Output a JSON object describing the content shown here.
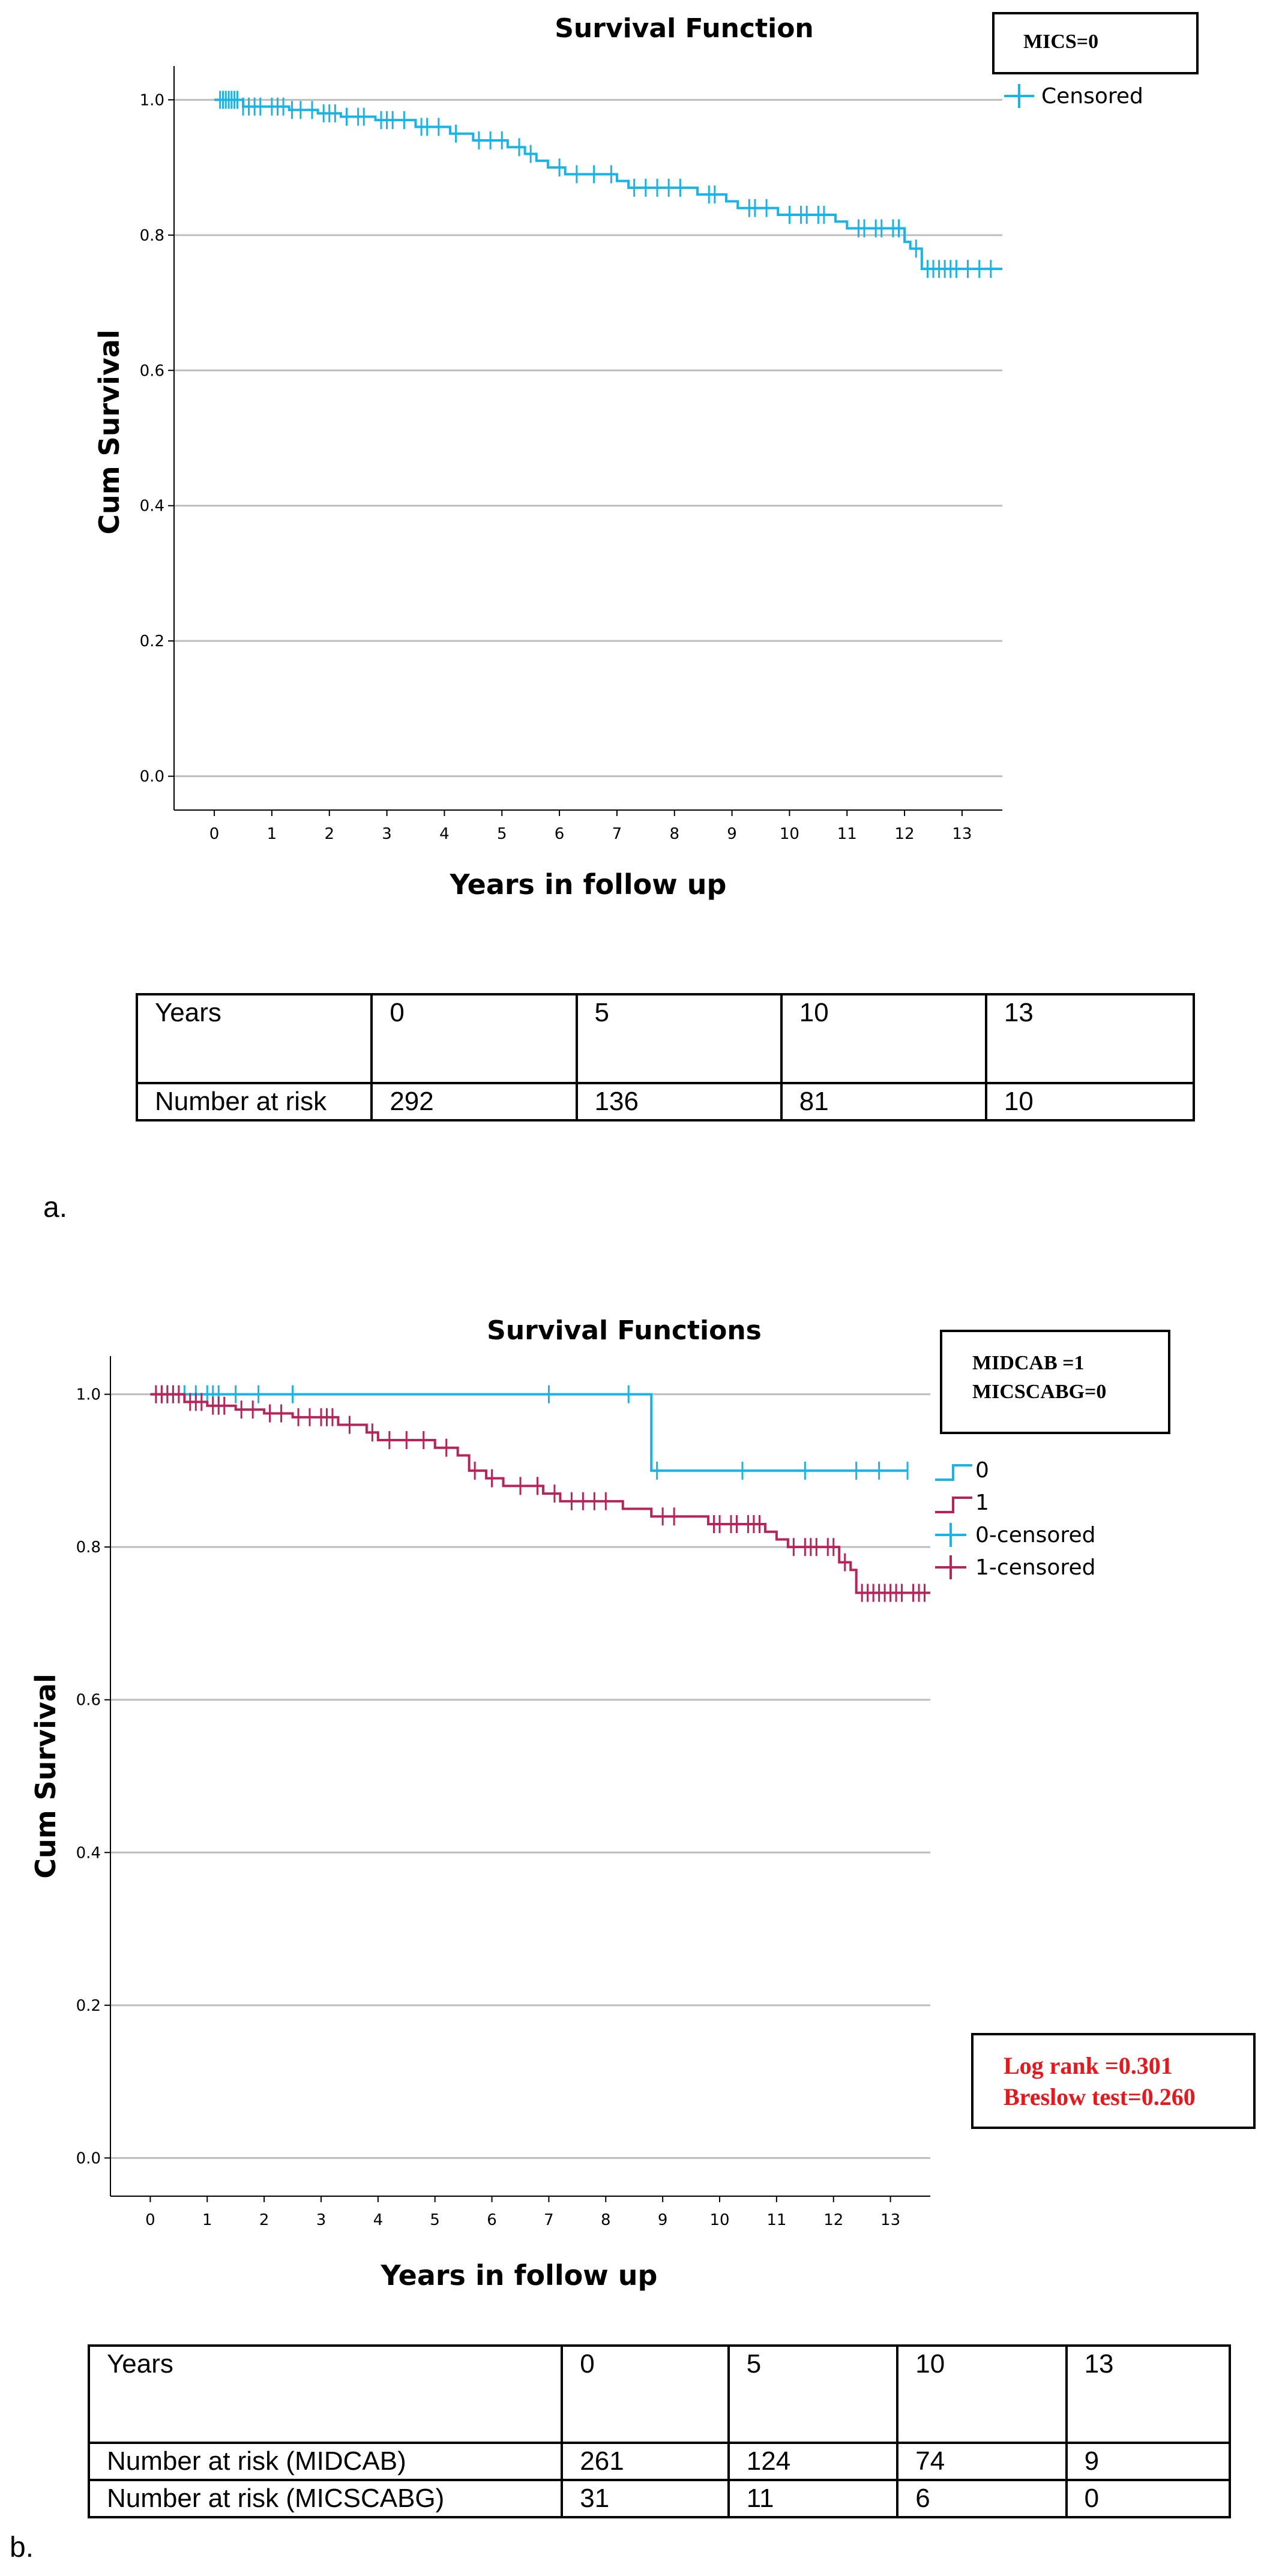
{
  "panel_a": {
    "label": "a.",
    "box_text": "MICS=0",
    "risk_table": {
      "header_label": "Years",
      "years": [
        "0",
        "5",
        "10",
        "13"
      ],
      "rows": [
        {
          "label": "Number at risk",
          "values": [
            "292",
            "136",
            "81",
            "10"
          ]
        }
      ]
    }
  },
  "panel_b": {
    "label": "b.",
    "box_text": [
      "MIDCAB =1",
      "MICSCABG=0"
    ],
    "stats": [
      "Log rank =0.301",
      "Breslow test=0.260"
    ],
    "risk_table": {
      "header_label": "Years",
      "years": [
        "0",
        "5",
        "10",
        "13"
      ],
      "rows": [
        {
          "label": "Number at risk (MIDCAB)",
          "values": [
            "261",
            "124",
            "74",
            "9"
          ]
        },
        {
          "label": "Number at risk (MICSCABG)",
          "values": [
            "31",
            "11",
            "6",
            "0"
          ]
        }
      ]
    }
  },
  "colors": {
    "cyan": "#18b4e8",
    "crimson": "#b8245a",
    "grid": "#bdbdbd",
    "stat_red": "#e8171b"
  },
  "chart_data": [
    {
      "type": "line",
      "title": "Survival Function",
      "xlabel": "Years in follow up",
      "ylabel": "Cum Survival",
      "xlim": [
        -0.7,
        13.7
      ],
      "ylim": [
        -0.05,
        1.05
      ],
      "xticks": [
        "0",
        "1",
        "2",
        "3",
        "4",
        "5",
        "6",
        "7",
        "8",
        "9",
        "10",
        "11",
        "12",
        "13"
      ],
      "yticks": [
        "0.0",
        "0.2",
        "0.4",
        "0.6",
        "0.8",
        "1.0"
      ],
      "legend": [
        "Censored"
      ],
      "series": [
        {
          "name": "Survival",
          "color": "#18b4e8",
          "steps": [
            [
              0,
              1.0
            ],
            [
              0.5,
              0.99
            ],
            [
              1.3,
              0.985
            ],
            [
              1.8,
              0.98
            ],
            [
              2.2,
              0.975
            ],
            [
              2.8,
              0.97
            ],
            [
              3.5,
              0.96
            ],
            [
              4.1,
              0.95
            ],
            [
              4.5,
              0.94
            ],
            [
              5.1,
              0.93
            ],
            [
              5.4,
              0.92
            ],
            [
              5.6,
              0.91
            ],
            [
              5.8,
              0.9
            ],
            [
              6.1,
              0.89
            ],
            [
              7.0,
              0.88
            ],
            [
              7.2,
              0.87
            ],
            [
              8.4,
              0.86
            ],
            [
              8.9,
              0.85
            ],
            [
              9.1,
              0.84
            ],
            [
              9.8,
              0.83
            ],
            [
              10.8,
              0.82
            ],
            [
              11.0,
              0.81
            ],
            [
              12.0,
              0.79
            ],
            [
              12.1,
              0.78
            ],
            [
              12.3,
              0.75
            ],
            [
              13.7,
              0.75
            ]
          ],
          "censored_x": [
            0.1,
            0.15,
            0.2,
            0.25,
            0.3,
            0.35,
            0.4,
            0.5,
            0.6,
            0.7,
            0.8,
            1.0,
            1.1,
            1.2,
            1.35,
            1.5,
            1.7,
            1.9,
            2.0,
            2.1,
            2.3,
            2.5,
            2.6,
            2.9,
            3.0,
            3.1,
            3.3,
            3.6,
            3.7,
            3.9,
            4.2,
            4.6,
            4.8,
            5.0,
            5.3,
            5.5,
            6.0,
            6.3,
            6.6,
            6.9,
            7.3,
            7.5,
            7.7,
            7.9,
            8.1,
            8.6,
            8.7,
            9.3,
            9.4,
            9.6,
            10.0,
            10.2,
            10.3,
            10.5,
            10.6,
            11.2,
            11.3,
            11.5,
            11.6,
            11.8,
            11.9,
            12.2,
            12.4,
            12.5,
            12.6,
            12.7,
            12.8,
            12.9,
            13.1,
            13.3,
            13.5
          ]
        }
      ]
    },
    {
      "type": "line",
      "title": "Survival Functions",
      "xlabel": "Years in follow up",
      "ylabel": "Cum Survival",
      "xlim": [
        -0.7,
        13.7
      ],
      "ylim": [
        -0.05,
        1.05
      ],
      "xticks": [
        "0",
        "1",
        "2",
        "3",
        "4",
        "5",
        "6",
        "7",
        "8",
        "9",
        "10",
        "11",
        "12",
        "13"
      ],
      "yticks": [
        "0.0",
        "0.2",
        "0.4",
        "0.6",
        "0.8",
        "1.0"
      ],
      "legend": [
        "0",
        "1",
        "0-censored",
        "1-censored"
      ],
      "series": [
        {
          "name": "0",
          "color": "#18b4e8",
          "steps": [
            [
              0,
              1.0
            ],
            [
              8.8,
              0.9
            ],
            [
              13.3,
              0.9
            ]
          ],
          "censored_x": [
            0.1,
            0.2,
            0.3,
            0.4,
            0.6,
            0.8,
            1.0,
            1.1,
            1.2,
            1.5,
            1.9,
            2.5,
            7.0,
            8.4,
            8.9,
            10.4,
            11.5,
            12.4,
            12.8,
            13.3
          ]
        },
        {
          "name": "1",
          "color": "#b8245a",
          "steps": [
            [
              0,
              1.0
            ],
            [
              0.6,
              0.99
            ],
            [
              1.0,
              0.985
            ],
            [
              1.5,
              0.98
            ],
            [
              2.0,
              0.975
            ],
            [
              2.5,
              0.97
            ],
            [
              3.3,
              0.96
            ],
            [
              3.8,
              0.95
            ],
            [
              4.0,
              0.94
            ],
            [
              5.0,
              0.93
            ],
            [
              5.4,
              0.92
            ],
            [
              5.6,
              0.9
            ],
            [
              5.9,
              0.89
            ],
            [
              6.2,
              0.88
            ],
            [
              6.9,
              0.87
            ],
            [
              7.2,
              0.86
            ],
            [
              8.3,
              0.85
            ],
            [
              8.8,
              0.84
            ],
            [
              9.8,
              0.83
            ],
            [
              10.8,
              0.82
            ],
            [
              11.0,
              0.81
            ],
            [
              11.2,
              0.8
            ],
            [
              12.1,
              0.78
            ],
            [
              12.3,
              0.77
            ],
            [
              12.4,
              0.74
            ],
            [
              13.7,
              0.74
            ]
          ],
          "censored_x": [
            0.1,
            0.2,
            0.3,
            0.4,
            0.5,
            0.7,
            0.8,
            0.9,
            1.1,
            1.2,
            1.3,
            1.6,
            1.8,
            2.1,
            2.3,
            2.6,
            2.8,
            3.0,
            3.1,
            3.2,
            3.5,
            3.9,
            4.2,
            4.5,
            4.8,
            5.2,
            5.7,
            6.0,
            6.5,
            6.8,
            7.1,
            7.4,
            7.6,
            7.8,
            8.0,
            9.0,
            9.2,
            9.9,
            10.0,
            10.2,
            10.3,
            10.5,
            10.6,
            10.7,
            11.3,
            11.5,
            11.6,
            11.7,
            11.9,
            12.0,
            12.2,
            12.5,
            12.6,
            12.7,
            12.8,
            12.9,
            13.0,
            13.1,
            13.2,
            13.4,
            13.5,
            13.6
          ]
        }
      ]
    }
  ]
}
